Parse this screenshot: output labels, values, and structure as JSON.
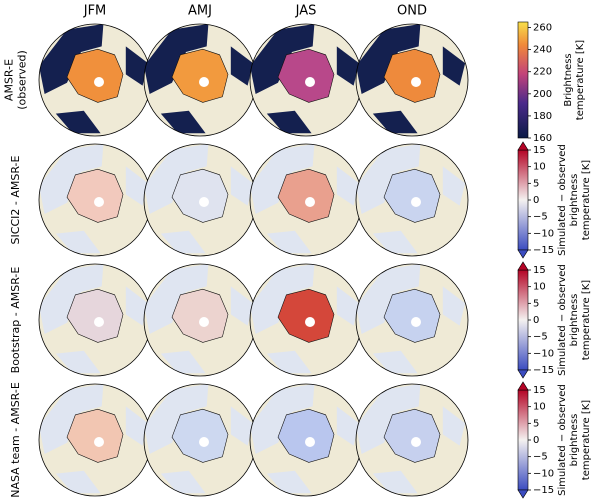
{
  "columns": [
    "JFM",
    "AMJ",
    "JAS",
    "OND"
  ],
  "rows": [
    {
      "label": [
        "AMSR-E",
        "(observed)"
      ]
    },
    {
      "label": [
        "SICCI2 - AMSR-E"
      ]
    },
    {
      "label": [
        "Bootstrap - AMSR-E"
      ]
    },
    {
      "label": [
        "NASA team - AMSR-E"
      ]
    }
  ],
  "colorbars": [
    {
      "label": [
        "Brightness",
        "temperature [K]"
      ],
      "lim": [
        160,
        265
      ],
      "ticks": [
        160,
        180,
        200,
        220,
        240,
        260
      ]
    },
    {
      "label": [
        "Simulated − observed",
        "brightness",
        "temperature [K]"
      ],
      "lim": [
        -15,
        15
      ],
      "ticks": [
        {
          "value": -15,
          "label": "−15"
        },
        {
          "value": -10,
          "label": "−10"
        },
        {
          "value": -5,
          "label": "−5"
        },
        0,
        5,
        10,
        15
      ]
    },
    {
      "label": [
        "Simulated − observed",
        "brightness",
        "temperature [K]"
      ],
      "lim": [
        -15,
        15
      ],
      "ticks": [
        {
          "value": -15,
          "label": "−15"
        },
        {
          "value": -10,
          "label": "−10"
        },
        {
          "value": -5,
          "label": "−5"
        },
        0,
        5,
        10,
        15
      ]
    },
    {
      "label": [
        "Simulated − observed",
        "brightness",
        "temperature [K]"
      ],
      "lim": [
        -15,
        15
      ],
      "ticks": [
        {
          "value": -15,
          "label": "−15"
        },
        {
          "value": -10,
          "label": "−10"
        },
        {
          "value": -5,
          "label": "−5"
        },
        0,
        5,
        10,
        15
      ]
    }
  ]
}
